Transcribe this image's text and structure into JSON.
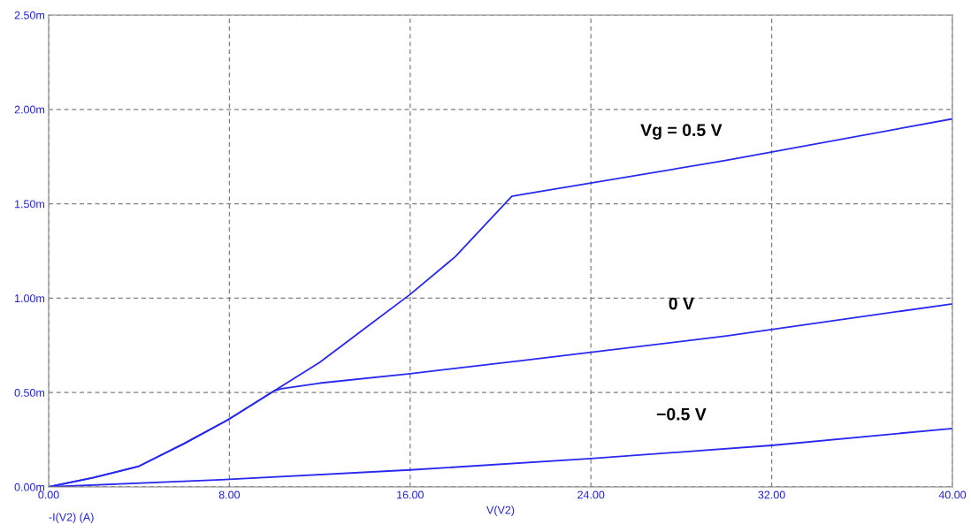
{
  "chart_data": {
    "type": "line",
    "xlabel": "V(V2)",
    "annotations": [
      "-I(V2) (A)"
    ],
    "xlim": [
      0,
      40
    ],
    "ylim": [
      0,
      2.5
    ],
    "xticks": [
      {
        "value": 0,
        "label": "0.00"
      },
      {
        "value": 8,
        "label": "8.00"
      },
      {
        "value": 16,
        "label": "16.00"
      },
      {
        "value": 24,
        "label": "24.00"
      },
      {
        "value": 32,
        "label": "32.00"
      },
      {
        "value": 40,
        "label": "40.00"
      }
    ],
    "yticks": [
      {
        "value": 0,
        "label": "0.00m"
      },
      {
        "value": 0.5,
        "label": "0.50m"
      },
      {
        "value": 1,
        "label": "1.00m"
      },
      {
        "value": 1.5,
        "label": "1.50m"
      },
      {
        "value": 2,
        "label": "2.00m"
      },
      {
        "value": 2.5,
        "label": "2.50m"
      }
    ],
    "grid": true,
    "line_style": "solid",
    "marker": "none",
    "series": [
      {
        "name": "Vg = 0.5 V",
        "color": "#2828f0",
        "x": [
          0,
          2,
          4,
          6,
          8,
          10,
          12,
          14,
          16,
          18,
          20.5,
          21,
          30,
          40
        ],
        "values": [
          0,
          0.05,
          0.11,
          0.23,
          0.36,
          0.51,
          0.66,
          0.84,
          1.02,
          1.22,
          1.54,
          1.55,
          1.73,
          1.95
        ]
      },
      {
        "name": "0 V",
        "color": "#2828f0",
        "x": [
          0,
          2,
          4,
          6,
          8,
          10,
          10.3,
          12,
          16,
          21,
          30,
          40
        ],
        "values": [
          0,
          0.05,
          0.11,
          0.23,
          0.36,
          0.51,
          0.52,
          0.55,
          0.6,
          0.67,
          0.8,
          0.97
        ]
      },
      {
        "name": "−0.5 V",
        "color": "#2828f0",
        "x": [
          0,
          8,
          16,
          24,
          32,
          40
        ],
        "values": [
          0,
          0.04,
          0.09,
          0.15,
          0.22,
          0.31
        ]
      }
    ]
  }
}
